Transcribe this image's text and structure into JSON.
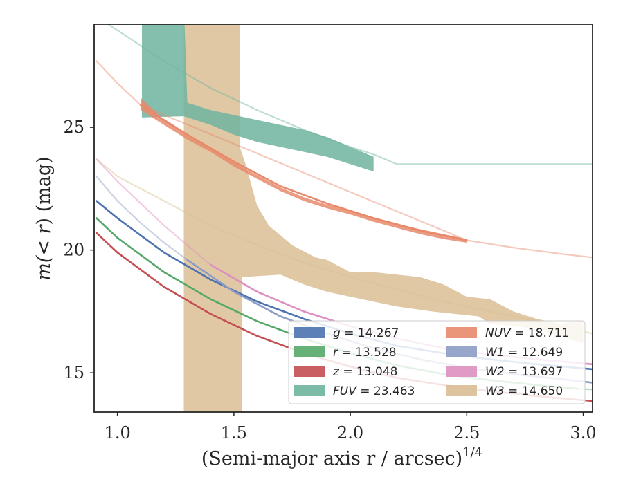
{
  "chart_data": {
    "type": "line",
    "xlabel": "(Semi-major axis r / arcsec)",
    "xlabel_sup": "1/4",
    "ylabel_pre": "m(",
    "ylabel_math": "< r",
    "ylabel_post": ") (mag)",
    "xlim": [
      0.9,
      3.04
    ],
    "ylim": [
      29.2,
      13.4
    ],
    "y_inverted": true,
    "x_ticks": [
      "1.0",
      "1.5",
      "2.0",
      "2.5",
      "3.0"
    ],
    "y_ticks": [
      "15",
      "20",
      "25"
    ],
    "grid": false,
    "legend": {
      "placement": "lower-right",
      "columns": 2
    },
    "series": [
      {
        "key": "g",
        "name_var": "g",
        "name_val": "= 14.267",
        "color": "#4c72b0",
        "solid": [
          [
            0.91,
            22.0
          ],
          [
            1.0,
            21.3
          ],
          [
            1.2,
            19.9
          ],
          [
            1.4,
            18.8
          ],
          [
            1.6,
            17.9
          ],
          [
            1.8,
            17.2
          ],
          [
            2.0,
            16.6
          ],
          [
            2.2,
            16.1
          ],
          [
            2.4,
            15.8
          ],
          [
            2.6,
            15.55
          ],
          [
            2.8,
            15.35
          ],
          [
            3.04,
            15.15
          ]
        ],
        "faint": []
      },
      {
        "key": "r",
        "name_var": "r",
        "name_val": "= 13.528",
        "color": "#55a868",
        "solid": [
          [
            0.91,
            21.3
          ],
          [
            1.0,
            20.5
          ],
          [
            1.2,
            19.1
          ],
          [
            1.4,
            18.0
          ],
          [
            1.6,
            17.1
          ],
          [
            1.8,
            16.4
          ],
          [
            2.0,
            15.8
          ],
          [
            2.2,
            15.3
          ],
          [
            2.4,
            14.95
          ],
          [
            2.6,
            14.7
          ],
          [
            2.8,
            14.5
          ],
          [
            2.98,
            14.35
          ]
        ],
        "faint": [
          [
            2.98,
            14.35
          ],
          [
            3.04,
            14.32
          ]
        ]
      },
      {
        "key": "z",
        "name_var": "z",
        "name_val": "= 13.048",
        "color": "#c44e52",
        "solid": [
          [
            0.91,
            20.7
          ],
          [
            1.0,
            19.9
          ],
          [
            1.2,
            18.5
          ],
          [
            1.4,
            17.4
          ],
          [
            1.6,
            16.5
          ],
          [
            1.8,
            15.8
          ],
          [
            2.0,
            15.25
          ],
          [
            2.2,
            14.8
          ],
          [
            2.4,
            14.5
          ],
          [
            2.6,
            14.25
          ],
          [
            2.8,
            14.05
          ],
          [
            3.04,
            13.85
          ]
        ],
        "faint": []
      },
      {
        "key": "FUV",
        "name_var": "FUV",
        "name_val": "= 23.463",
        "color": "#6fb4a0",
        "solid": [],
        "faint": [
          [
            0.96,
            29.2
          ],
          [
            1.2,
            27.7
          ],
          [
            1.4,
            26.6
          ],
          [
            1.6,
            25.7
          ],
          [
            1.8,
            24.9
          ],
          [
            2.0,
            24.2
          ],
          [
            2.1,
            23.9
          ],
          [
            2.2,
            23.5
          ],
          [
            3.04,
            23.5
          ]
        ]
      },
      {
        "key": "NUV",
        "name_var": "NUV",
        "name_val": "= 18.711",
        "color": "#e8896b",
        "solid": [
          [
            1.1,
            25.9
          ],
          [
            1.3,
            24.7
          ],
          [
            1.5,
            23.6
          ],
          [
            1.7,
            22.6
          ],
          [
            1.9,
            21.9
          ],
          [
            2.1,
            21.3
          ],
          [
            2.3,
            20.8
          ],
          [
            2.5,
            20.4
          ]
        ],
        "faint": [
          [
            0.91,
            27.7
          ],
          [
            1.0,
            26.8
          ],
          [
            1.1,
            25.9
          ],
          [
            2.5,
            20.4
          ],
          [
            2.7,
            20.1
          ],
          [
            2.9,
            19.85
          ],
          [
            3.04,
            19.7
          ]
        ]
      },
      {
        "key": "W1",
        "name_var": "W1",
        "name_val": "= 12.649",
        "color": "#8c9cc4",
        "solid": [
          [
            1.3,
            19.6
          ],
          [
            1.5,
            18.3
          ],
          [
            1.7,
            17.3
          ],
          [
            1.9,
            16.6
          ],
          [
            2.1,
            16.0
          ],
          [
            2.3,
            15.55
          ],
          [
            2.5,
            15.2
          ],
          [
            2.7,
            14.95
          ],
          [
            2.9,
            14.75
          ],
          [
            3.04,
            14.6
          ]
        ],
        "faint": [
          [
            0.91,
            23.0
          ],
          [
            1.0,
            22.0
          ],
          [
            1.1,
            21.1
          ],
          [
            1.2,
            20.3
          ],
          [
            1.3,
            19.6
          ]
        ]
      },
      {
        "key": "W2",
        "name_var": "W2",
        "name_val": "= 13.697",
        "color": "#dd8fc0",
        "solid": [
          [
            1.4,
            19.4
          ],
          [
            1.6,
            18.3
          ],
          [
            1.8,
            17.5
          ],
          [
            2.0,
            16.9
          ],
          [
            2.2,
            16.4
          ],
          [
            2.4,
            16.0
          ],
          [
            2.6,
            15.75
          ],
          [
            2.8,
            15.55
          ],
          [
            3.04,
            15.35
          ]
        ],
        "faint": [
          [
            0.91,
            23.7
          ],
          [
            1.0,
            22.8
          ],
          [
            1.2,
            21.0
          ],
          [
            1.4,
            19.4
          ]
        ]
      },
      {
        "key": "W3",
        "name_var": "W3",
        "name_val": "= 14.650",
        "color": "#d9be93",
        "solid": [],
        "faint": [
          [
            0.91,
            23.7
          ],
          [
            1.0,
            23.0
          ],
          [
            1.2,
            22.0
          ],
          [
            1.4,
            21.0
          ],
          [
            1.6,
            20.2
          ],
          [
            1.8,
            19.5
          ],
          [
            2.0,
            18.9
          ],
          [
            2.2,
            18.4
          ],
          [
            2.4,
            17.9
          ],
          [
            2.6,
            17.5
          ],
          [
            2.8,
            17.1
          ],
          [
            3.04,
            16.6
          ]
        ]
      }
    ],
    "bands": [
      {
        "key": "W3",
        "color": "#d9be93",
        "outline": [
          [
            1.285,
            13.0
          ],
          [
            1.535,
            13.0
          ],
          [
            1.535,
            18.9
          ],
          [
            1.7,
            19.0
          ],
          [
            1.8,
            18.6
          ],
          [
            1.9,
            18.3
          ],
          [
            2.0,
            18.1
          ],
          [
            2.1,
            17.9
          ],
          [
            2.2,
            17.7
          ],
          [
            2.35,
            17.5
          ],
          [
            2.45,
            17.4
          ],
          [
            2.55,
            17.3
          ],
          [
            2.6,
            17.0
          ],
          [
            2.7,
            16.9
          ],
          [
            2.8,
            16.8
          ],
          [
            2.9,
            16.5
          ],
          [
            3.0,
            16.2
          ],
          [
            3.0,
            17.1
          ],
          [
            2.97,
            17.1
          ],
          [
            2.9,
            17.0
          ],
          [
            2.8,
            17.2
          ],
          [
            2.7,
            17.5
          ],
          [
            2.6,
            18.0
          ],
          [
            2.5,
            18.1
          ],
          [
            2.4,
            18.6
          ],
          [
            2.3,
            18.9
          ],
          [
            2.2,
            19.0
          ],
          [
            2.1,
            19.1
          ],
          [
            2.0,
            19.1
          ],
          [
            1.9,
            19.6
          ],
          [
            1.85,
            19.7
          ],
          [
            1.75,
            20.2
          ],
          [
            1.65,
            21.0
          ],
          [
            1.6,
            21.8
          ],
          [
            1.55,
            23.5
          ],
          [
            1.525,
            24.2
          ],
          [
            1.525,
            30.0
          ],
          [
            1.285,
            30.0
          ]
        ]
      },
      {
        "key": "FUV",
        "color": "#6fb4a0",
        "outline": [
          [
            1.105,
            25.4
          ],
          [
            1.285,
            25.45
          ],
          [
            1.4,
            25.1
          ],
          [
            1.5,
            24.7
          ],
          [
            1.6,
            24.4
          ],
          [
            1.7,
            24.2
          ],
          [
            1.8,
            24.0
          ],
          [
            1.9,
            23.8
          ],
          [
            2.0,
            23.5
          ],
          [
            2.1,
            23.2
          ],
          [
            2.1,
            23.8
          ],
          [
            2.0,
            24.2
          ],
          [
            1.9,
            24.6
          ],
          [
            1.8,
            24.9
          ],
          [
            1.7,
            25.1
          ],
          [
            1.6,
            25.3
          ],
          [
            1.5,
            25.5
          ],
          [
            1.4,
            25.7
          ],
          [
            1.3,
            26.0
          ],
          [
            1.285,
            30.0
          ],
          [
            1.105,
            30.0
          ]
        ]
      },
      {
        "key": "NUV",
        "color": "#e8896b",
        "outline": [
          [
            1.1,
            25.7
          ],
          [
            1.2,
            25.1
          ],
          [
            1.3,
            24.5
          ],
          [
            1.4,
            24.0
          ],
          [
            1.5,
            23.4
          ],
          [
            1.6,
            22.9
          ],
          [
            1.7,
            22.4
          ],
          [
            1.8,
            22.0
          ],
          [
            1.9,
            21.7
          ],
          [
            2.0,
            21.45
          ],
          [
            2.1,
            21.15
          ],
          [
            2.2,
            20.9
          ],
          [
            2.3,
            20.65
          ],
          [
            2.4,
            20.45
          ],
          [
            2.5,
            20.3
          ],
          [
            2.5,
            20.45
          ],
          [
            2.4,
            20.65
          ],
          [
            2.3,
            20.85
          ],
          [
            2.2,
            21.05
          ],
          [
            2.1,
            21.3
          ],
          [
            2.0,
            21.6
          ],
          [
            1.9,
            21.85
          ],
          [
            1.8,
            22.15
          ],
          [
            1.7,
            22.55
          ],
          [
            1.6,
            23.05
          ],
          [
            1.5,
            23.55
          ],
          [
            1.4,
            24.15
          ],
          [
            1.3,
            24.65
          ],
          [
            1.2,
            25.3
          ],
          [
            1.1,
            26.2
          ]
        ]
      }
    ]
  }
}
